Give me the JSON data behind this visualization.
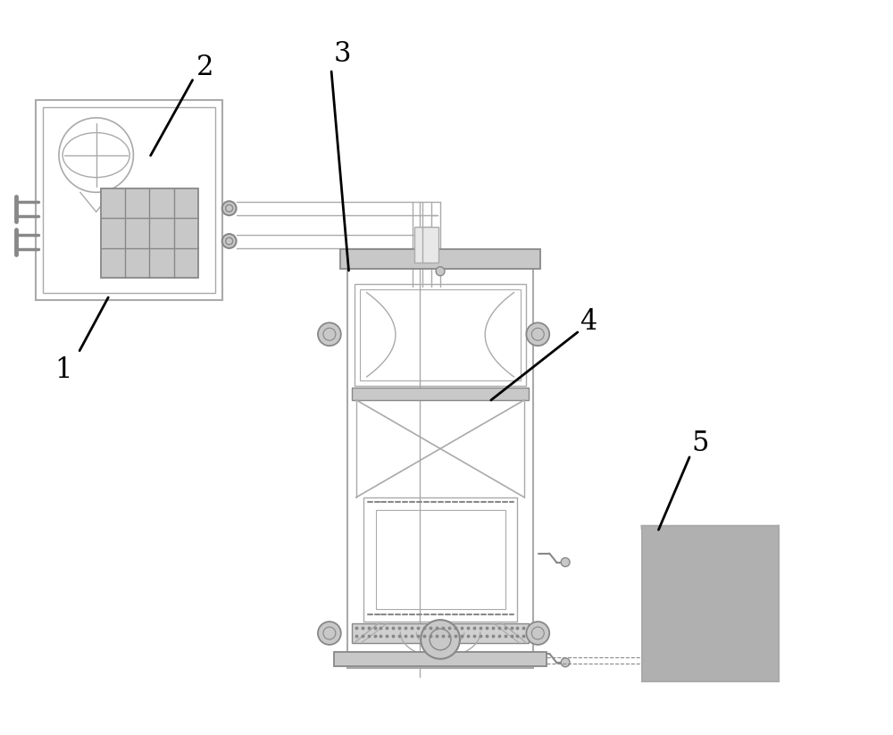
{
  "bg_color": "#ffffff",
  "lc": "#aaaaaa",
  "dc": "#888888",
  "bk": "#000000",
  "gray_fill": "#c8c8c8",
  "dark_gray": "#999999",
  "tank_gray": "#b0b0b0"
}
